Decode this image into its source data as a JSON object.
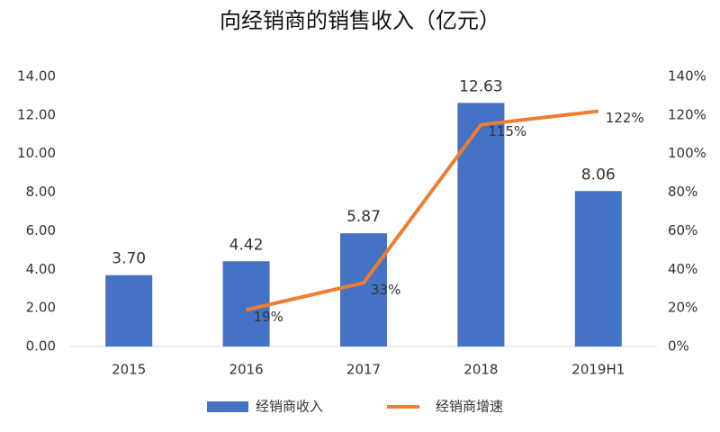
{
  "chart_data": {
    "type": "bar-line",
    "title": "向经销商的销售收入（亿元）",
    "categories": [
      "2015",
      "2016",
      "2017",
      "2018",
      "2019H1"
    ],
    "series": [
      {
        "name": "经销商收入",
        "color": "#4472c4",
        "values": [
          3.7,
          4.42,
          5.87,
          12.63,
          8.06
        ],
        "value_labels": [
          "3.70",
          "4.42",
          "5.87",
          "12.63",
          "8.06"
        ]
      },
      {
        "name": "经销商增速",
        "color": "#ed7d31",
        "axis": "y2",
        "values": [
          null,
          19,
          33,
          115,
          122
        ],
        "value_labels": [
          null,
          "19%",
          "33%",
          "115%",
          "122%"
        ]
      }
    ],
    "ylim": [
      0,
      14
    ],
    "yticks": [
      {
        "value": 0,
        "label": "0.00"
      },
      {
        "value": 2,
        "label": "2.00"
      },
      {
        "value": 4,
        "label": "4.00"
      },
      {
        "value": 6,
        "label": "6.00"
      },
      {
        "value": 8,
        "label": "8.00"
      },
      {
        "value": 10,
        "label": "10.00"
      },
      {
        "value": 12,
        "label": "12.00"
      },
      {
        "value": 14,
        "label": "14.00"
      }
    ],
    "y2lim": [
      0,
      140
    ],
    "y2ticks": [
      {
        "value": 0,
        "label": "0%"
      },
      {
        "value": 20,
        "label": "20%"
      },
      {
        "value": 40,
        "label": "40%"
      },
      {
        "value": 60,
        "label": "60%"
      },
      {
        "value": 80,
        "label": "80%"
      },
      {
        "value": 100,
        "label": "100%"
      },
      {
        "value": 120,
        "label": "120%"
      },
      {
        "value": 140,
        "label": "140%"
      }
    ],
    "legend": "bottom"
  }
}
